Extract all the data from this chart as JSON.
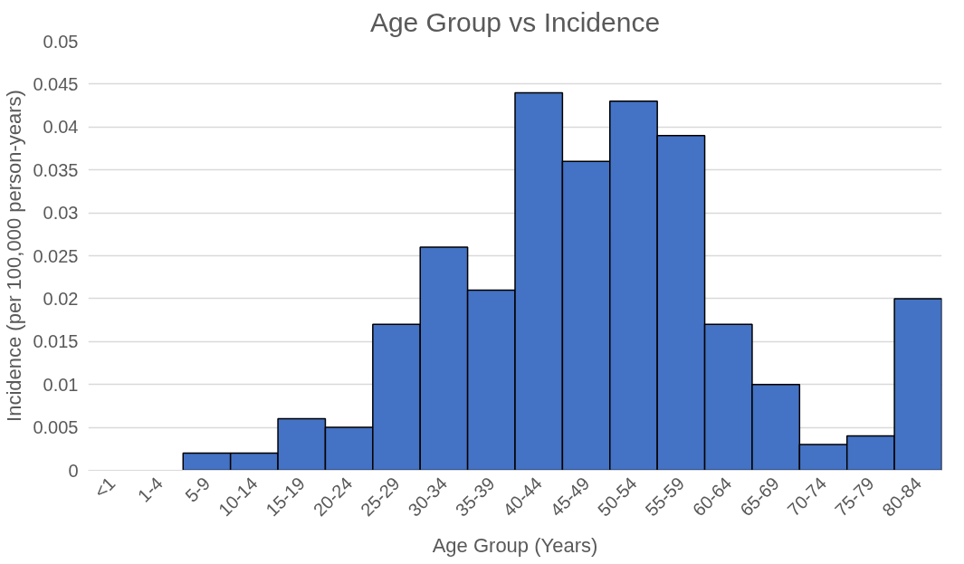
{
  "chart_data": {
    "type": "bar",
    "title": "Age Group vs Incidence",
    "xlabel": "Age Group (Years)",
    "ylabel": "Incidence (per 100,000 person-years)",
    "categories": [
      "<1",
      "1-4",
      "5-9",
      "10-14",
      "15-19",
      "20-24",
      "25-29",
      "30-34",
      "35-39",
      "40-44",
      "45-49",
      "50-54",
      "55-59",
      "60-64",
      "65-69",
      "70-74",
      "75-79",
      "80-84"
    ],
    "values": [
      0,
      0,
      0.002,
      0.002,
      0.006,
      0.005,
      0.017,
      0.026,
      0.021,
      0.044,
      0.036,
      0.043,
      0.039,
      0.017,
      0.01,
      0.003,
      0.004,
      0.02
    ],
    "color": "#4472c4",
    "ylim": [
      0,
      0.05
    ],
    "yticks": [
      0,
      0.005,
      0.01,
      0.015,
      0.02,
      0.025,
      0.03,
      0.035,
      0.04,
      0.045,
      0.05
    ],
    "grid": "y"
  }
}
